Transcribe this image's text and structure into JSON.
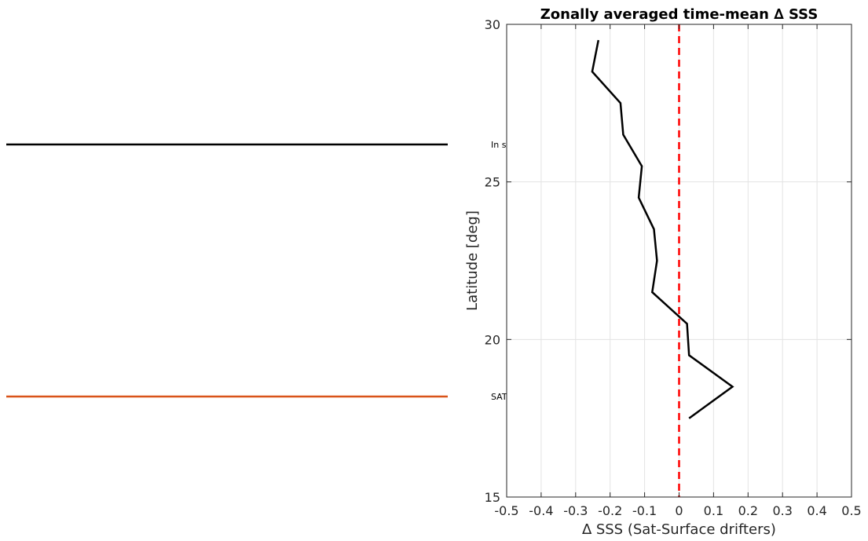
{
  "chart_data": {
    "type": "line",
    "title": "Zonally averaged time-mean ∆ SSS",
    "xlabel": "∆ SSS (Sat-Surface drifters)",
    "ylabel": "Latitude [deg]",
    "xlim": [
      -0.5,
      0.5
    ],
    "ylim": [
      15,
      30
    ],
    "xticks": [
      -0.5,
      -0.4,
      -0.3,
      -0.2,
      -0.1,
      0,
      0.1,
      0.2,
      0.3,
      0.4,
      0.5
    ],
    "xtick_labels": [
      "-0.5",
      "-0.4",
      "-0.3",
      "-0.2",
      "-0.1",
      "0",
      "0.1",
      "0.2",
      "0.3",
      "0.4",
      "0.5"
    ],
    "yticks": [
      15,
      20,
      25,
      30
    ],
    "ytick_labels": [
      "15",
      "20",
      "25",
      "30"
    ],
    "grid": true,
    "series": [
      {
        "color": "#000000",
        "x": [
          -0.234,
          -0.252,
          -0.17,
          -0.162,
          -0.108,
          -0.117,
          -0.073,
          -0.064,
          -0.078,
          0.023,
          0.029,
          0.155,
          0.029
        ],
        "y": [
          29.5,
          28.5,
          27.5,
          26.5,
          25.5,
          24.5,
          23.5,
          22.5,
          21.5,
          20.5,
          19.5,
          18.5,
          17.5
        ]
      }
    ],
    "reference_line": {
      "x": 0,
      "color": "#ff0000",
      "style": "dashed"
    },
    "legend": {
      "entries": [
        {
          "label": "In s",
          "color": "#000000"
        },
        {
          "label": "SAT",
          "color": "#d95319"
        }
      ]
    }
  }
}
